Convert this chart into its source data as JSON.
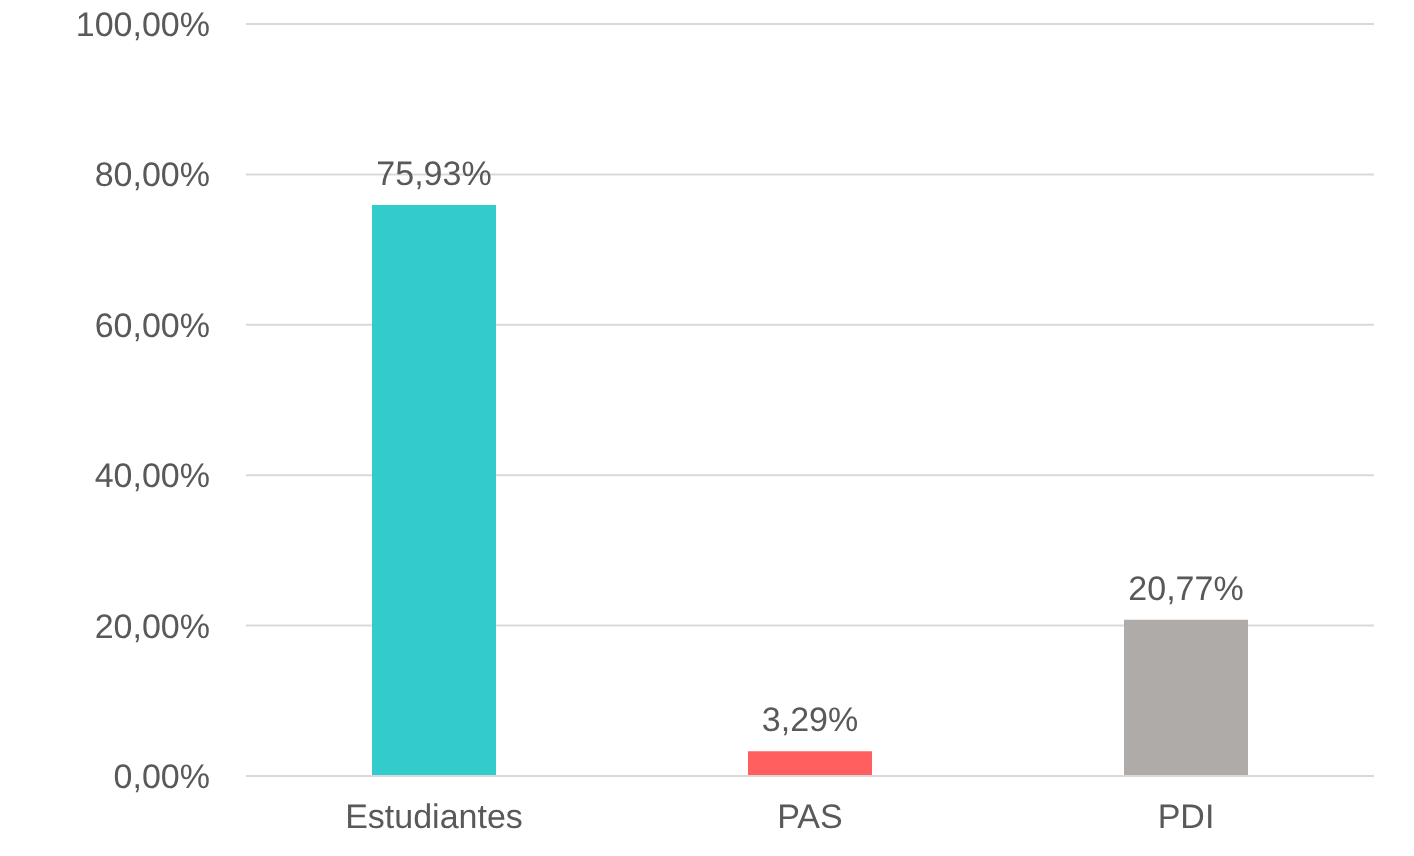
{
  "chart_data": {
    "type": "bar",
    "categories": [
      "Estudiantes",
      "PAS",
      "PDI"
    ],
    "values": [
      75.93,
      3.29,
      20.77
    ],
    "colors": [
      "#33cccc",
      "#ff5f5f",
      "#afaba9"
    ],
    "value_labels": [
      "75,93%",
      "3,29%",
      "20,77%"
    ],
    "ylim": [
      0,
      100
    ],
    "yticks": [
      {
        "value": 0,
        "label": "0,00%"
      },
      {
        "value": 20,
        "label": "20,00%"
      },
      {
        "value": 40,
        "label": "40,00%"
      },
      {
        "value": 60,
        "label": "60,00%"
      },
      {
        "value": 80,
        "label": "80,00%"
      },
      {
        "value": 100,
        "label": "100,00%"
      }
    ],
    "grid": "y",
    "legend": false
  }
}
